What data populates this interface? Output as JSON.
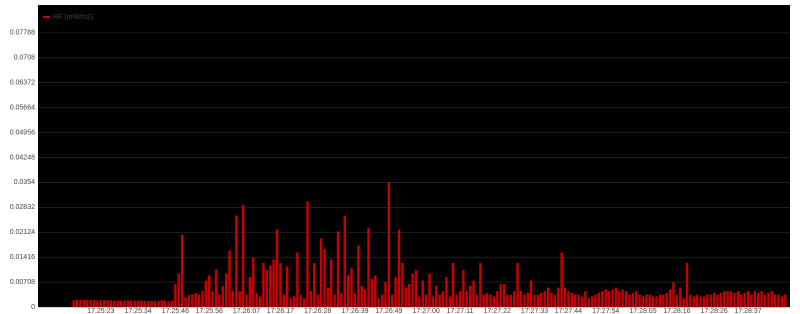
{
  "chart_data": {
    "type": "bar",
    "legend": "RF (mW/m2)",
    "legend_position": "upper left",
    "color": "#cc0000",
    "grid": true,
    "ylim": [
      0,
      0.0858
    ],
    "yticks": [
      0,
      0.00708,
      0.01416,
      0.02124,
      0.02832,
      0.0354,
      0.04248,
      0.04956,
      0.05664,
      0.06372,
      0.0708,
      0.07788
    ],
    "categories": [
      null,
      null,
      null,
      null,
      null,
      null,
      null,
      null,
      "17:25:23",
      null,
      null,
      null,
      null,
      null,
      null,
      null,
      null,
      null,
      null,
      "17:25:34",
      null,
      null,
      null,
      null,
      null,
      null,
      null,
      null,
      null,
      null,
      "17:25:46",
      null,
      null,
      null,
      null,
      null,
      null,
      null,
      null,
      null,
      "17:25:56",
      null,
      null,
      null,
      null,
      null,
      null,
      null,
      null,
      null,
      null,
      "17:26:07",
      null,
      null,
      null,
      null,
      null,
      null,
      null,
      null,
      null,
      "17:26:17",
      null,
      null,
      null,
      null,
      null,
      null,
      null,
      null,
      null,
      null,
      "17:26:28",
      null,
      null,
      null,
      null,
      null,
      null,
      null,
      null,
      null,
      null,
      "17:26:39",
      null,
      null,
      null,
      null,
      null,
      null,
      null,
      null,
      null,
      "17:26:49",
      null,
      null,
      null,
      null,
      null,
      null,
      null,
      null,
      null,
      null,
      "17:27:00",
      null,
      null,
      null,
      null,
      null,
      null,
      null,
      null,
      null,
      "17:27:11",
      null,
      null,
      null,
      null,
      null,
      null,
      null,
      null,
      null,
      null,
      "17:27:22",
      null,
      null,
      null,
      null,
      null,
      null,
      null,
      null,
      null,
      null,
      "17:27:33",
      null,
      null,
      null,
      null,
      null,
      null,
      null,
      null,
      null,
      "17:27:44",
      null,
      null,
      null,
      null,
      null,
      null,
      null,
      null,
      null,
      null,
      "17:27:54",
      null,
      null,
      null,
      null,
      null,
      null,
      null,
      null,
      null,
      null,
      "17:28:05",
      null,
      null,
      null,
      null,
      null,
      null,
      null,
      null,
      null,
      "17:28:16",
      null,
      null,
      null,
      null,
      null,
      null,
      null,
      null,
      null,
      null,
      "17:28:26",
      null,
      null,
      null,
      null,
      null,
      null,
      null,
      null,
      null,
      "17:28:37",
      null,
      null,
      null,
      null,
      null,
      null,
      null,
      null,
      null,
      null,
      null
    ],
    "values": [
      0.0019,
      0.0021,
      0.002,
      0.002,
      0.0019,
      0.002,
      0.0019,
      0.0018,
      0.002,
      0.002,
      0.0019,
      0.0019,
      0.0018,
      0.0018,
      0.0018,
      0.0019,
      0.0019,
      0.0018,
      0.0018,
      0.0018,
      0.0018,
      0.0017,
      0.0017,
      0.0018,
      0.0017,
      0.0018,
      0.0019,
      0.0017,
      0.0016,
      0.0018,
      0.0065,
      0.0095,
      0.0205,
      0.0028,
      0.0035,
      0.0036,
      0.0039,
      0.0035,
      0.0045,
      0.0075,
      0.009,
      0.0045,
      0.0105,
      0.0035,
      0.006,
      0.0095,
      0.016,
      0.0045,
      0.026,
      0.0045,
      0.029,
      0.0035,
      0.0085,
      0.014,
      0.004,
      0.003,
      0.0125,
      0.0105,
      0.0118,
      0.0135,
      0.022,
      0.0125,
      0.0035,
      0.0115,
      0.0025,
      0.003,
      0.0155,
      0.0035,
      0.0025,
      0.03,
      0.0045,
      0.0125,
      0.0035,
      0.0195,
      0.0165,
      0.0055,
      0.0135,
      0.0035,
      0.0215,
      0.004,
      0.026,
      0.009,
      0.011,
      0.004,
      0.0175,
      0.006,
      0.005,
      0.0225,
      0.008,
      0.009,
      0.0025,
      0.0035,
      0.007,
      0.0355,
      0.0035,
      0.0085,
      0.022,
      0.0125,
      0.0055,
      0.0065,
      0.0095,
      0.0105,
      0.003,
      0.0075,
      0.0035,
      0.0095,
      0.003,
      0.006,
      0.0035,
      0.0045,
      0.0085,
      0.003,
      0.0125,
      0.0035,
      0.0045,
      0.0105,
      0.0045,
      0.006,
      0.0075,
      0.0035,
      0.0125,
      0.0035,
      0.004,
      0.0035,
      0.003,
      0.0045,
      0.0065,
      0.0065,
      0.0035,
      0.0035,
      0.0045,
      0.0125,
      0.0045,
      0.0035,
      0.004,
      0.0075,
      0.0035,
      0.0035,
      0.004,
      0.0045,
      0.0055,
      0.004,
      0.0035,
      0.0055,
      0.0155,
      0.0055,
      0.0045,
      0.004,
      0.0035,
      0.0035,
      0.003,
      0.0045,
      0.0025,
      0.003,
      0.0035,
      0.004,
      0.0045,
      0.005,
      0.0045,
      0.005,
      0.0055,
      0.0045,
      0.005,
      0.0045,
      0.0035,
      0.004,
      0.0045,
      0.0035,
      0.003,
      0.0035,
      0.0035,
      0.003,
      0.003,
      0.0035,
      0.0035,
      0.004,
      0.005,
      0.007,
      0.0035,
      0.0055,
      0.0025,
      0.0125,
      0.0035,
      0.003,
      0.0035,
      0.003,
      0.003,
      0.0035,
      0.0035,
      0.004,
      0.0035,
      0.004,
      0.0045,
      0.0045,
      0.0045,
      0.004,
      0.0045,
      0.0035,
      0.004,
      0.0045,
      0.0035,
      0.0045,
      0.004,
      0.0045,
      0.0035,
      0.004,
      0.0045,
      0.0035,
      0.0035,
      0.003,
      0.0035
    ]
  }
}
